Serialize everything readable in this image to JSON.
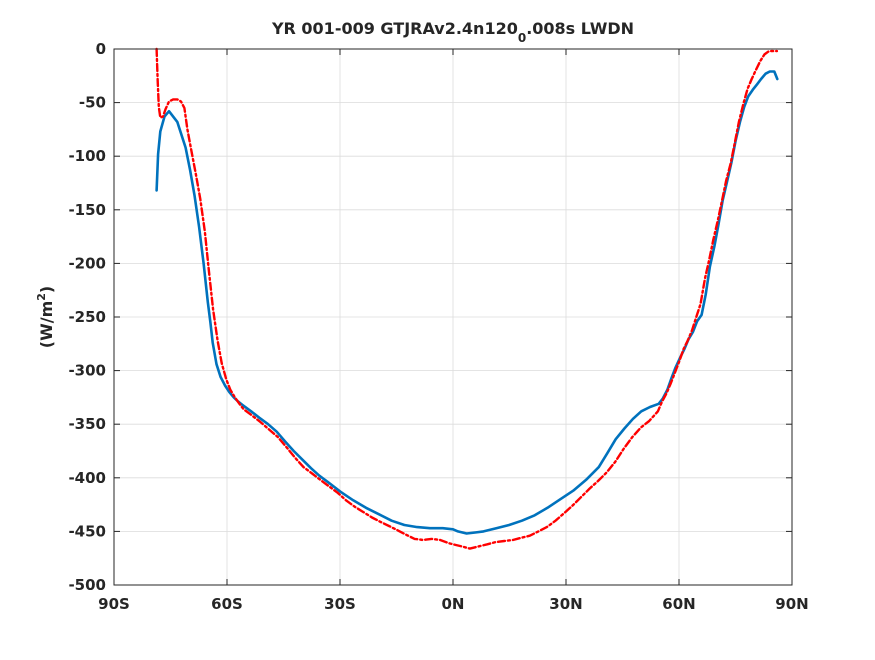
{
  "chart_data": {
    "type": "line",
    "title_main": "YR 001-009 GTJRAv2.4n120",
    "title_subscript": "0",
    "title_tail": ".008s LWDN",
    "xlabel": "",
    "ylabel_main": "(W/m",
    "ylabel_sup": "2",
    "ylabel_tail": ")",
    "xlim": [
      -90,
      90
    ],
    "ylim": [
      -500,
      0
    ],
    "grid": true,
    "x_ticks": [
      {
        "value": -90,
        "label": "90S"
      },
      {
        "value": -60,
        "label": "60S"
      },
      {
        "value": -30,
        "label": "30S"
      },
      {
        "value": 0,
        "label": "0N"
      },
      {
        "value": 30,
        "label": "30N"
      },
      {
        "value": 60,
        "label": "60N"
      },
      {
        "value": 90,
        "label": "90N"
      }
    ],
    "y_ticks": [
      {
        "value": 0,
        "label": "0"
      },
      {
        "value": -50,
        "label": "-50"
      },
      {
        "value": -100,
        "label": "-100"
      },
      {
        "value": -150,
        "label": "-150"
      },
      {
        "value": -200,
        "label": "-200"
      },
      {
        "value": -250,
        "label": "-250"
      },
      {
        "value": -300,
        "label": "-300"
      },
      {
        "value": -350,
        "label": "-350"
      },
      {
        "value": -400,
        "label": "-400"
      },
      {
        "value": -450,
        "label": "-450"
      },
      {
        "value": -500,
        "label": "-500"
      }
    ],
    "series": [
      {
        "color": "#0072BD",
        "style": "solid",
        "x": [
          -78.7,
          -78.3,
          -77.7,
          -76.6,
          -75.4,
          -73.2,
          -71,
          -69.8,
          -68.6,
          -67.4,
          -66.2,
          -65.1,
          -64.4,
          -63.8,
          -62.8,
          -61.7,
          -60.5,
          -59.4,
          -58.2,
          -57,
          -55.9,
          -53.6,
          -51.4,
          -49.1,
          -46.8,
          -44.6,
          -42.3,
          -40,
          -37.7,
          -35.5,
          -33.2,
          -29.9,
          -26.5,
          -23.1,
          -19.7,
          -16.3,
          -12.9,
          -9.5,
          -6.1,
          -2.7,
          0,
          1.3,
          3.6,
          5.9,
          8.1,
          11.5,
          14.9,
          18.3,
          21.7,
          25.1,
          28.5,
          31.9,
          35.3,
          38.7,
          41,
          43.2,
          45.5,
          47.8,
          50,
          52.3,
          54.6,
          55.7,
          56.9,
          58,
          59.1,
          60.3,
          61.4,
          62.5,
          63.7,
          64.8,
          66,
          67.1,
          68.2,
          69.4,
          70.5,
          71.6,
          72.8,
          73.9,
          75,
          76.2,
          77.3,
          78.4,
          79.6,
          80.7,
          81.8,
          83,
          84.1,
          85.3,
          86.1
        ],
        "y": [
          -132,
          -98,
          -77,
          -63,
          -58,
          -68,
          -92,
          -113,
          -137,
          -166,
          -200,
          -236,
          -255,
          -274,
          -294,
          -306,
          -314,
          -320,
          -325,
          -329,
          -332,
          -338,
          -344,
          -350,
          -357,
          -366,
          -375,
          -383,
          -391,
          -398,
          -404,
          -413,
          -421,
          -428,
          -434,
          -440,
          -444,
          -446,
          -447,
          -447,
          -448,
          -450,
          -452,
          -451,
          -450,
          -447,
          -444,
          -440,
          -435,
          -428,
          -420,
          -412,
          -402,
          -390,
          -377,
          -364,
          -354,
          -345,
          -338,
          -334,
          -331,
          -326,
          -318,
          -307,
          -297,
          -288,
          -280,
          -271,
          -264,
          -254,
          -248,
          -229,
          -203,
          -184,
          -163,
          -141,
          -123,
          -106,
          -86,
          -68,
          -54,
          -44,
          -38,
          -33,
          -28,
          -23,
          -21,
          -21,
          -28
        ]
      },
      {
        "color": "#FF0000",
        "style": "dashdot",
        "x": [
          -78.7,
          -78.4,
          -78.1,
          -77.7,
          -77,
          -76.3,
          -75.4,
          -74.3,
          -73.2,
          -72.2,
          -71.3,
          -70.5,
          -69.4,
          -68.2,
          -67.1,
          -65.9,
          -64.8,
          -63.7,
          -62.5,
          -61.4,
          -60.2,
          -59.1,
          -57.9,
          -56.7,
          -55.6,
          -53.3,
          -51.1,
          -48.8,
          -46.5,
          -44.3,
          -42,
          -39.7,
          -37.4,
          -35.2,
          -32.9,
          -30.6,
          -28.4,
          -26.1,
          -23.8,
          -21.5,
          -19.3,
          -17,
          -14.7,
          -12.5,
          -10.2,
          -7.9,
          -5.7,
          -3.4,
          -1.1,
          0,
          2.3,
          4.5,
          6.8,
          9.1,
          11.3,
          13.6,
          15.9,
          18.1,
          20.4,
          22.7,
          24.9,
          27.2,
          29.5,
          31.7,
          34,
          36.3,
          38.5,
          40.8,
          43.1,
          45.3,
          47.6,
          49.9,
          52.1,
          54.4,
          55.5,
          56.7,
          57.8,
          58.9,
          60.1,
          61.2,
          62.3,
          63.5,
          64.6,
          65.7,
          66.9,
          68,
          69.1,
          70.3,
          71.4,
          72.5,
          73.7,
          74.8,
          75.9,
          77.1,
          78.2,
          79.3,
          80.5,
          81.6,
          82.7,
          83.9,
          85,
          86
        ],
        "y": [
          0,
          -30,
          -54,
          -64,
          -63,
          -56,
          -49,
          -47,
          -47,
          -49,
          -55,
          -75,
          -96,
          -118,
          -140,
          -170,
          -207,
          -243,
          -272,
          -293,
          -308,
          -318,
          -325,
          -331,
          -336,
          -342,
          -348,
          -355,
          -362,
          -371,
          -381,
          -390,
          -396,
          -402,
          -408,
          -414,
          -421,
          -427,
          -432,
          -437,
          -441,
          -445,
          -449,
          -453,
          -457,
          -458,
          -457,
          -458,
          -461,
          -462,
          -464,
          -466,
          -464,
          -462,
          -460,
          -459,
          -458,
          -456,
          -454,
          -450,
          -446,
          -440,
          -433,
          -426,
          -418,
          -410,
          -403,
          -395,
          -385,
          -373,
          -362,
          -353,
          -347,
          -338,
          -329,
          -321,
          -312,
          -302,
          -291,
          -280,
          -272,
          -262,
          -250,
          -238,
          -214,
          -197,
          -178,
          -160,
          -142,
          -123,
          -107,
          -88,
          -68,
          -51,
          -37,
          -28,
          -19,
          -11,
          -5,
          -2,
          -2,
          -2
        ]
      }
    ]
  }
}
